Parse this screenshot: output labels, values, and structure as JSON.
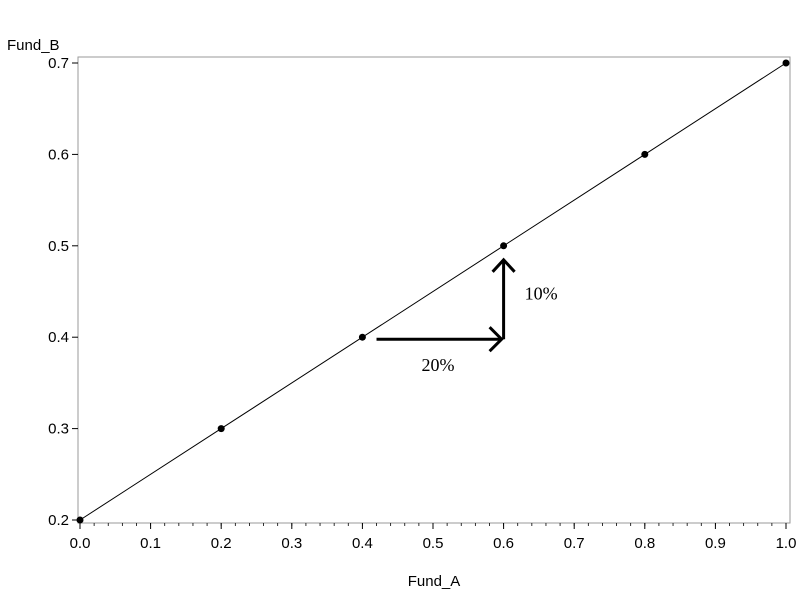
{
  "chart_data": {
    "type": "line",
    "title": "",
    "xlabel": "Fund_A",
    "ylabel": "Fund_B",
    "xlim": [
      0.0,
      1.0
    ],
    "ylim": [
      0.2,
      0.7
    ],
    "x_ticks": [
      "0.0",
      "0.1",
      "0.2",
      "0.3",
      "0.4",
      "0.5",
      "0.6",
      "0.7",
      "0.8",
      "0.9",
      "1.0"
    ],
    "y_ticks": [
      "0.2",
      "0.3",
      "0.4",
      "0.5",
      "0.6",
      "0.7"
    ],
    "grid": false,
    "series": [
      {
        "x": [
          0.0,
          0.2,
          0.4,
          0.6,
          0.8,
          1.0
        ],
        "y": [
          0.2,
          0.3,
          0.4,
          0.5,
          0.6,
          0.7
        ],
        "markers": true
      }
    ],
    "annotations": [
      {
        "text": "20%",
        "kind": "arrow-right",
        "from": [
          0.42,
          0.4
        ],
        "to": [
          0.6,
          0.4
        ]
      },
      {
        "text": "10%",
        "kind": "arrow-up",
        "from": [
          0.6,
          0.4
        ],
        "to": [
          0.6,
          0.5
        ]
      }
    ]
  }
}
